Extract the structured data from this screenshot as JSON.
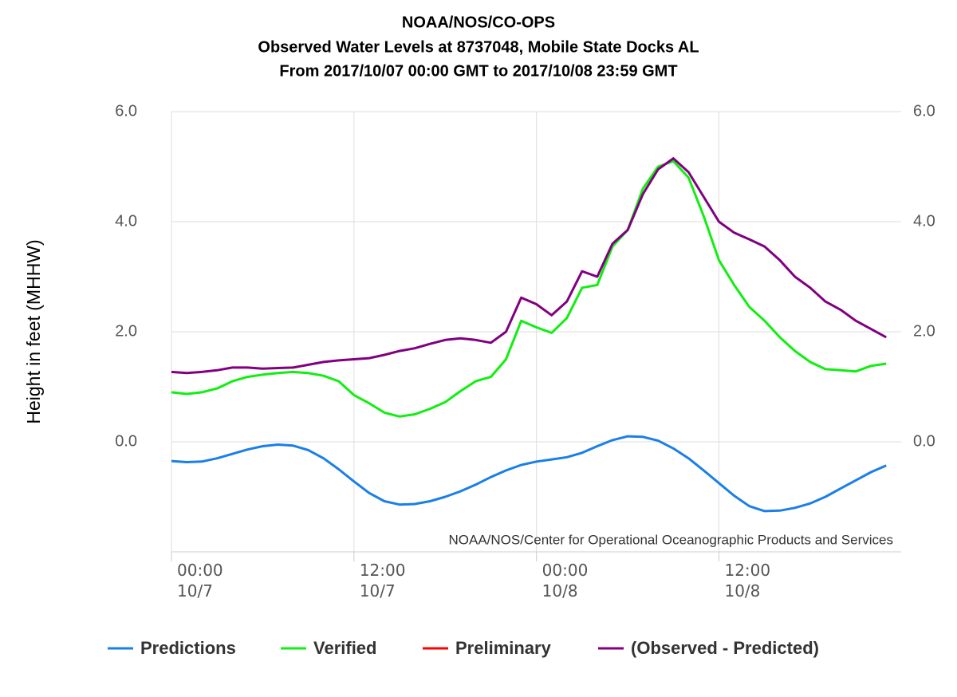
{
  "chart_data": {
    "type": "line",
    "title": "NOAA/NOS/CO-OPS",
    "subtitle": "Observed Water Levels at 8737048, Mobile State Docks AL",
    "subtitle2": "From 2017/10/07 00:00 GMT to 2017/10/08 23:59 GMT",
    "y_label": "Height in feet (MHHW)",
    "credit": "NOAA/NOS/Center for Operational Oceanographic Products and Services",
    "x": [
      "2017-10-07T00:00",
      "2017-10-07T01:00",
      "2017-10-07T02:00",
      "2017-10-07T03:00",
      "2017-10-07T04:00",
      "2017-10-07T05:00",
      "2017-10-07T06:00",
      "2017-10-07T07:00",
      "2017-10-07T08:00",
      "2017-10-07T09:00",
      "2017-10-07T10:00",
      "2017-10-07T11:00",
      "2017-10-07T12:00",
      "2017-10-07T13:00",
      "2017-10-07T14:00",
      "2017-10-07T15:00",
      "2017-10-07T16:00",
      "2017-10-07T17:00",
      "2017-10-07T18:00",
      "2017-10-07T19:00",
      "2017-10-07T20:00",
      "2017-10-07T21:00",
      "2017-10-07T22:00",
      "2017-10-07T23:00",
      "2017-10-08T00:00",
      "2017-10-08T01:00",
      "2017-10-08T02:00",
      "2017-10-08T03:00",
      "2017-10-08T04:00",
      "2017-10-08T05:00",
      "2017-10-08T06:00",
      "2017-10-08T07:00",
      "2017-10-08T08:00",
      "2017-10-08T09:00",
      "2017-10-08T10:00",
      "2017-10-08T11:00",
      "2017-10-08T12:00",
      "2017-10-08T13:00",
      "2017-10-08T14:00",
      "2017-10-08T15:00",
      "2017-10-08T16:00",
      "2017-10-08T17:00",
      "2017-10-08T18:00",
      "2017-10-08T19:00",
      "2017-10-08T20:00",
      "2017-10-08T21:00",
      "2017-10-08T22:00",
      "2017-10-08T23:00"
    ],
    "series": [
      {
        "name": "Predictions",
        "color": "#1a7fe8",
        "values": [
          -0.35,
          -0.37,
          -0.36,
          -0.3,
          -0.22,
          -0.14,
          -0.08,
          -0.05,
          -0.07,
          -0.15,
          -0.3,
          -0.5,
          -0.72,
          -0.93,
          -1.08,
          -1.14,
          -1.13,
          -1.08,
          -1.0,
          -0.9,
          -0.78,
          -0.64,
          -0.52,
          -0.42,
          -0.36,
          -0.32,
          -0.28,
          -0.2,
          -0.08,
          0.03,
          0.1,
          0.09,
          0.02,
          -0.12,
          -0.3,
          -0.52,
          -0.75,
          -0.98,
          -1.17,
          -1.26,
          -1.25,
          -1.2,
          -1.12,
          -1.0,
          -0.85,
          -0.7,
          -0.55,
          -0.43
        ]
      },
      {
        "name": "Verified",
        "color": "#11ee11",
        "values": [
          0.9,
          0.87,
          0.9,
          0.97,
          1.1,
          1.18,
          1.22,
          1.25,
          1.27,
          1.25,
          1.2,
          1.1,
          0.85,
          0.7,
          0.53,
          0.46,
          0.5,
          0.6,
          0.72,
          0.92,
          1.1,
          1.18,
          1.5,
          2.2,
          2.08,
          1.98,
          2.25,
          2.8,
          2.85,
          3.55,
          3.85,
          4.6,
          5.0,
          5.1,
          4.8,
          4.1,
          3.3,
          2.85,
          2.45,
          2.2,
          1.9,
          1.65,
          1.45,
          1.32,
          1.3,
          1.28,
          1.38,
          1.42
        ]
      },
      {
        "name": "Preliminary",
        "color": "#ff0000",
        "values": [
          null,
          null,
          null,
          null,
          null,
          null,
          null,
          null,
          null,
          null,
          null,
          null,
          null,
          null,
          null,
          null,
          null,
          null,
          null,
          null,
          null,
          null,
          null,
          null,
          null,
          null,
          null,
          null,
          null,
          null,
          null,
          null,
          null,
          null,
          null,
          null,
          null,
          null,
          null,
          null,
          null,
          null,
          null,
          null,
          null,
          null,
          null,
          null
        ]
      },
      {
        "name": "(Observed - Predicted)",
        "color": "#800080",
        "values": [
          1.27,
          1.25,
          1.27,
          1.3,
          1.35,
          1.35,
          1.33,
          1.34,
          1.35,
          1.4,
          1.45,
          1.48,
          1.5,
          1.52,
          1.58,
          1.65,
          1.7,
          1.78,
          1.85,
          1.88,
          1.85,
          1.8,
          2.0,
          2.62,
          2.5,
          2.3,
          2.55,
          3.1,
          3.0,
          3.6,
          3.85,
          4.5,
          4.95,
          5.15,
          4.9,
          4.45,
          4.0,
          3.8,
          3.68,
          3.55,
          3.3,
          3.0,
          2.8,
          2.55,
          2.4,
          2.2,
          2.05,
          1.9
        ]
      }
    ],
    "xlim": [
      "2017-10-07T00:00",
      "2017-10-08T23:59"
    ],
    "xticks": [
      {
        "value": "2017-10-07T00:00",
        "label": "00:00\n10/7"
      },
      {
        "value": "2017-10-07T12:00",
        "label": "12:00\n10/7"
      },
      {
        "value": "2017-10-08T00:00",
        "label": "00:00\n10/8"
      },
      {
        "value": "2017-10-08T12:00",
        "label": "12:00\n10/8"
      }
    ],
    "ylim": [
      -2,
      6
    ],
    "yticks": [
      {
        "value": 0,
        "label": "0.0"
      },
      {
        "value": 2,
        "label": "2.0"
      },
      {
        "value": 4,
        "label": "4.0"
      },
      {
        "value": 6,
        "label": "6.0"
      }
    ],
    "grid": true,
    "legend": "bottom"
  }
}
